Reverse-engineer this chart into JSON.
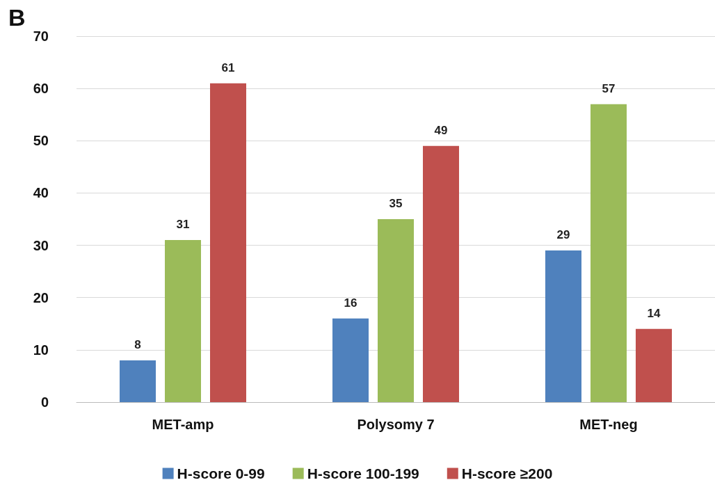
{
  "chart_data": {
    "type": "bar",
    "categories": [
      "MET-amp",
      "Polysomy 7",
      "MET-neg"
    ],
    "series": [
      {
        "name": "H-score 0-99",
        "color": "#4f81bd",
        "values": [
          8,
          16,
          29
        ]
      },
      {
        "name": "H-score 100-199",
        "color": "#9bbb59",
        "values": [
          31,
          35,
          57
        ]
      },
      {
        "name": "H-score ≥200",
        "color": "#c0504d",
        "values": [
          61,
          49,
          14
        ]
      }
    ],
    "ylim": [
      0,
      70
    ],
    "yticks": [
      0,
      10,
      20,
      30,
      40,
      50,
      60,
      70
    ],
    "grid": "y",
    "legend": "bottom",
    "data_labels": true,
    "annotations": [
      "B"
    ]
  }
}
